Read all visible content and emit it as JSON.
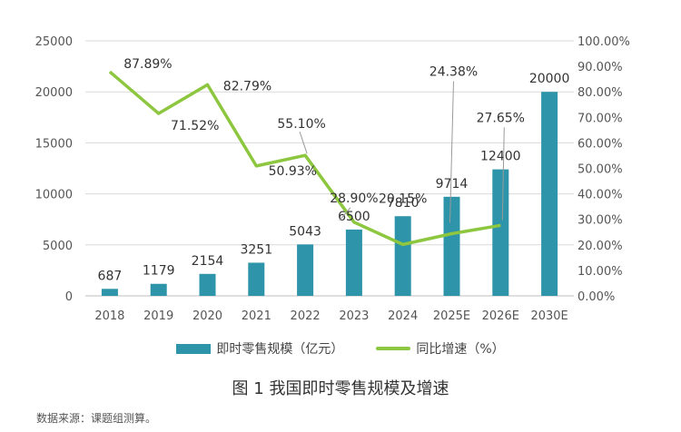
{
  "chart_data": {
    "type": "bar+line",
    "categories": [
      "2018",
      "2019",
      "2020",
      "2021",
      "2022",
      "2023",
      "2024",
      "2025E",
      "2026E",
      "2030E"
    ],
    "series": [
      {
        "name": "即时零售规模（亿元）",
        "type": "bar",
        "axis": "left",
        "color": "#2e94a9",
        "values": [
          687,
          1179,
          2154,
          3251,
          5043,
          6500,
          7810,
          9714,
          12400,
          20000
        ],
        "labels": [
          "687",
          "1179",
          "2154",
          "3251",
          "5043",
          "6500",
          "7810",
          "9714",
          "12400",
          "20000"
        ]
      },
      {
        "name": "同比增速（%）",
        "type": "line",
        "axis": "right",
        "color": "#8dc63f",
        "values": [
          87.89,
          71.52,
          82.79,
          50.93,
          55.1,
          28.9,
          20.15,
          24.38,
          27.65,
          null
        ],
        "labels": [
          "87.89%",
          "71.52%",
          "82.79%",
          "50.93%",
          "55.10%",
          "28.90%",
          "20.15%",
          "24.38%",
          "27.65%",
          ""
        ]
      }
    ],
    "y_left": {
      "ylim": [
        0,
        25000
      ],
      "ticks": [
        "0",
        "5000",
        "10000",
        "15000",
        "20000",
        "25000"
      ]
    },
    "y_right": {
      "ylim": [
        0,
        100
      ],
      "ticks": [
        "0.00%",
        "10.00%",
        "20.00%",
        "30.00%",
        "40.00%",
        "50.00%",
        "60.00%",
        "70.00%",
        "80.00%",
        "90.00%",
        "100.00%"
      ]
    },
    "grid": true,
    "legend": "bottom"
  },
  "legend": {
    "bar_label": "即时零售规模（亿元）",
    "line_label": "同比增速（%）",
    "bar_color": "#2e94a9",
    "line_color": "#8dc63f"
  },
  "caption": "图 1 我国即时零售规模及增速",
  "source": "数据来源：课题组测算。"
}
